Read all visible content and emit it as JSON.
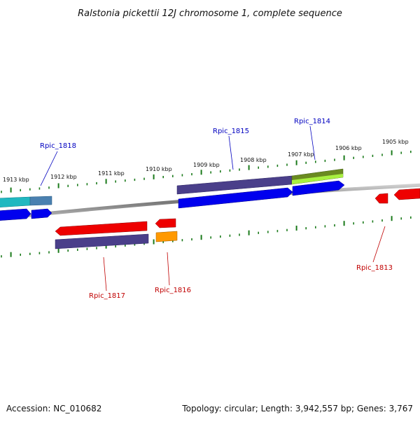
{
  "title": "Ralstonia pickettii 12J chromosome 1, complete sequence",
  "footer": {
    "accession": "Accession: NC_010682",
    "summary": "Topology: circular; Length: 3,942,557 bp; Genes: 3,767"
  },
  "scale": {
    "labels": [
      "1913 kbp",
      "1912 kbp",
      "1911 kbp",
      "1910 kbp",
      "1909 kbp",
      "1908 kbp",
      "1907 kbp",
      "1906 kbp",
      "1905 kbp"
    ]
  },
  "genes": {
    "labels": {
      "rpic_1818": "Rpic_1818",
      "rpic_1815": "Rpic_1815",
      "rpic_1814": "Rpic_1814",
      "rpic_1817": "Rpic_1817",
      "rpic_1816": "Rpic_1816",
      "rpic_1813": "Rpic_1813"
    }
  },
  "colors": {
    "forward_label": "#0000c0",
    "reverse_label": "#c00000",
    "tick": "#1a7a1a",
    "backbone": "#888888",
    "gene_blue": "#0000ee",
    "gene_purple": "#4a3f8a",
    "gene_red": "#ee0000",
    "gene_orange": "#ff9900",
    "gene_teal": "#20b8c0",
    "gene_lime": "#a8f040",
    "gene_olive": "#6a8a20"
  }
}
